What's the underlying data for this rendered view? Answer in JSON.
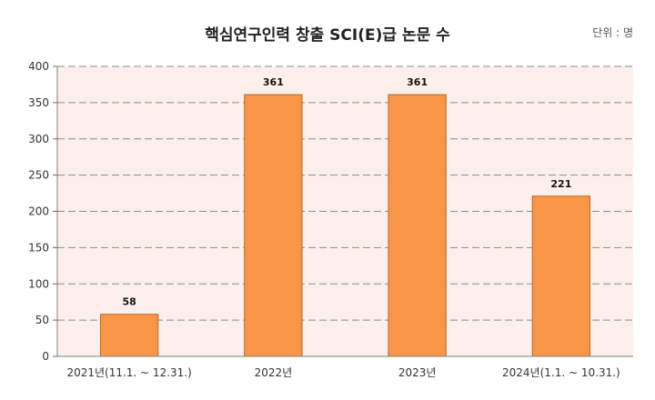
{
  "chart_data": {
    "type": "bar",
    "title": "핵심연구인력 창출 SCI(E)급 논문 수",
    "unit": "단위 : 명",
    "categories": [
      "2021년(11.1. ~ 12.31.)",
      "2022년",
      "2023년",
      "2024년(1.1. ~ 10.31.)"
    ],
    "values": [
      58,
      361,
      361,
      221
    ],
    "ylim": [
      0,
      400
    ],
    "yticks": [
      0,
      50,
      100,
      150,
      200,
      250,
      300,
      350,
      400
    ],
    "grid": true,
    "legend": "none",
    "colors": {
      "bar": "#F79646",
      "bar_border": "#B8652A",
      "plot_background": "#FDF0EB",
      "grid": "#8C8C8C"
    }
  }
}
